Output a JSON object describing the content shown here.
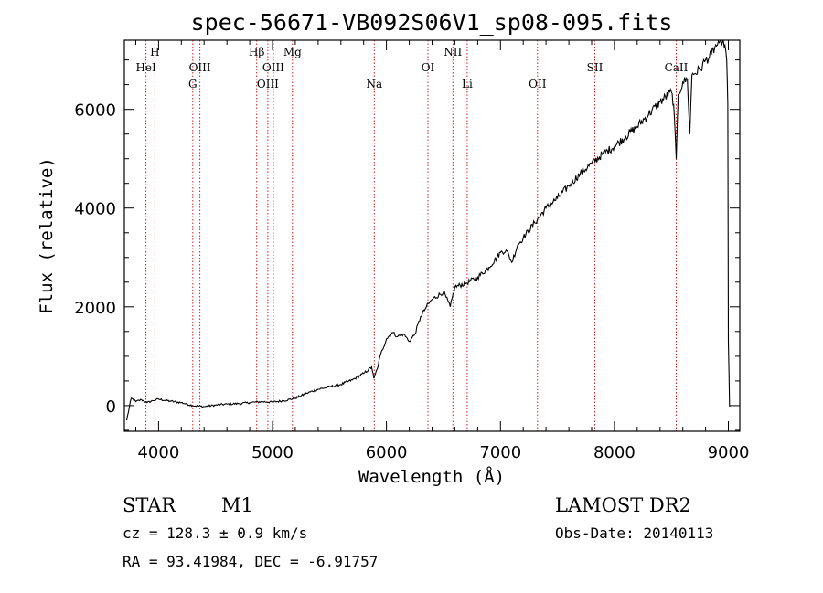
{
  "chart_data": {
    "type": "line",
    "title": "spec-56671-VB092S06V1_sp08-095.fits",
    "xlabel": "Wavelength (Å)",
    "ylabel": "Flux (relative)",
    "xlim": [
      3700,
      9100
    ],
    "ylim": [
      -520,
      7400
    ],
    "x_ticks": [
      4000,
      5000,
      6000,
      7000,
      8000,
      9000
    ],
    "y_ticks": [
      0,
      2000,
      4000,
      6000
    ],
    "grid": false,
    "line_color": "#000000",
    "marker_color": "#cc2222",
    "series": [
      {
        "x": [
          3720,
          3760,
          3800,
          3850,
          3900,
          3950,
          4000,
          4100,
          4200,
          4300,
          4400,
          4500,
          4600,
          4700,
          4800,
          4900,
          5000,
          5100,
          5200,
          5300,
          5400,
          5500,
          5600,
          5700,
          5800,
          5870,
          5890,
          5920,
          5950,
          6000,
          6050,
          6100,
          6150,
          6200,
          6250,
          6300,
          6350,
          6400,
          6500,
          6560,
          6600,
          6700,
          6800,
          6900,
          7000,
          7050,
          7100,
          7150,
          7200,
          7300,
          7400,
          7500,
          7600,
          7700,
          7800,
          7900,
          8000,
          8100,
          8200,
          8300,
          8400,
          8500,
          8520,
          8542,
          8560,
          8600,
          8640,
          8662,
          8680,
          8750,
          8800,
          8850,
          8880,
          8920,
          8950,
          8970,
          8985,
          8995,
          9000,
          9010
        ],
        "y": [
          -300,
          150,
          80,
          120,
          60,
          100,
          130,
          90,
          60,
          0,
          -20,
          10,
          30,
          40,
          60,
          80,
          70,
          100,
          150,
          250,
          330,
          380,
          430,
          520,
          650,
          780,
          550,
          750,
          1050,
          1350,
          1480,
          1400,
          1450,
          1300,
          1450,
          1800,
          2000,
          2150,
          2300,
          2000,
          2400,
          2480,
          2600,
          2800,
          3100,
          3150,
          2900,
          3250,
          3400,
          3700,
          4000,
          4200,
          4450,
          4700,
          4900,
          5100,
          5250,
          5450,
          5650,
          5900,
          6150,
          6350,
          6100,
          5000,
          6300,
          6550,
          6600,
          5500,
          6700,
          6800,
          7000,
          7100,
          7250,
          7350,
          7450,
          7300,
          7000,
          6100,
          1300,
          -20
        ]
      }
    ],
    "line_markers": [
      {
        "wavelength": 3889,
        "label": "HeI",
        "row": 2
      },
      {
        "wavelength": 3968,
        "label": "H",
        "row": 1
      },
      {
        "wavelength": 4300,
        "label": "G",
        "row": 3
      },
      {
        "wavelength": 4363,
        "label": "OIII",
        "row": 2
      },
      {
        "wavelength": 4861,
        "label": "Hβ",
        "row": 1
      },
      {
        "wavelength": 4959,
        "label": "OIII",
        "row": 3
      },
      {
        "wavelength": 5007,
        "label": "OIII",
        "row": 2
      },
      {
        "wavelength": 5175,
        "label": "Mg",
        "row": 1
      },
      {
        "wavelength": 5893,
        "label": "Na",
        "row": 3
      },
      {
        "wavelength": 6364,
        "label": "OI",
        "row": 2
      },
      {
        "wavelength": 6583,
        "label": "NII",
        "row": 1
      },
      {
        "wavelength": 6708,
        "label": "Li",
        "row": 3
      },
      {
        "wavelength": 7325,
        "label": "OII",
        "row": 3
      },
      {
        "wavelength": 7828,
        "label": "SII",
        "row": 2
      },
      {
        "wavelength": 8542,
        "label": "CaII",
        "row": 2
      }
    ]
  },
  "info": {
    "object_class": "STAR",
    "subclass": "M1",
    "survey": "LAMOST DR2",
    "cz": "cz = 128.3 ± 0.9 km/s",
    "obs_date": "Obs-Date: 20140113",
    "coords": "RA =  93.41984, DEC =  -6.91757"
  }
}
